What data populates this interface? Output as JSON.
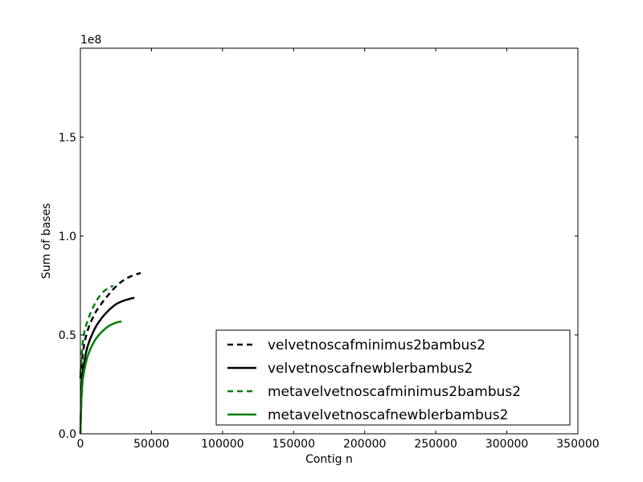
{
  "chart_data": {
    "type": "line",
    "title": "",
    "xlabel": "Contig n",
    "ylabel": "Sum of bases",
    "offset_text": "1e8",
    "xlim": [
      0,
      350000
    ],
    "ylim": [
      0,
      195000000
    ],
    "x_ticks": [
      0,
      50000,
      100000,
      150000,
      200000,
      250000,
      300000,
      350000
    ],
    "x_tick_labels": [
      "0",
      "50000",
      "100000",
      "150000",
      "200000",
      "250000",
      "300000",
      "350000"
    ],
    "y_ticks": [
      0,
      50000000,
      100000000,
      150000000
    ],
    "y_tick_labels": [
      "0.0",
      "0.5",
      "1.0",
      "1.5"
    ],
    "grid": false,
    "legend_position": "lower-right",
    "series": [
      {
        "name": "velvetnoscafminimus2bambus2",
        "color": "#000000",
        "style": "dashed",
        "x": [
          0,
          2000,
          5000,
          10000,
          15000,
          20000,
          25000,
          30000,
          35000,
          40000,
          42500
        ],
        "y": [
          28000000,
          42000000,
          52000000,
          60500000,
          66000000,
          70500000,
          74500000,
          77500000,
          79500000,
          80800000,
          81300000
        ]
      },
      {
        "name": "velvetnoscafnewblerbambus2",
        "color": "#000000",
        "style": "solid",
        "x": [
          0,
          1000,
          2000,
          5000,
          10000,
          15000,
          20000,
          25000,
          30000,
          35000,
          38000
        ],
        "y": [
          0,
          24000000,
          33000000,
          44000000,
          53000000,
          58500000,
          62500000,
          65500000,
          67200000,
          68300000,
          68800000
        ]
      },
      {
        "name": "metavelvetnoscafminimus2bambus2",
        "color": "#008000",
        "style": "dashed",
        "x": [
          0,
          2000,
          5000,
          10000,
          15000,
          20000,
          23000
        ],
        "y": [
          30000000,
          48000000,
          57000000,
          65500000,
          71000000,
          73800000,
          74800000
        ]
      },
      {
        "name": "metavelvetnoscafnewblerbambus2",
        "color": "#008000",
        "style": "solid",
        "x": [
          0,
          500,
          1000,
          2000,
          5000,
          10000,
          15000,
          20000,
          25000,
          29000
        ],
        "y": [
          0,
          14000000,
          21000000,
          29000000,
          39000000,
          47000000,
          51500000,
          54500000,
          56200000,
          56800000
        ]
      }
    ]
  }
}
